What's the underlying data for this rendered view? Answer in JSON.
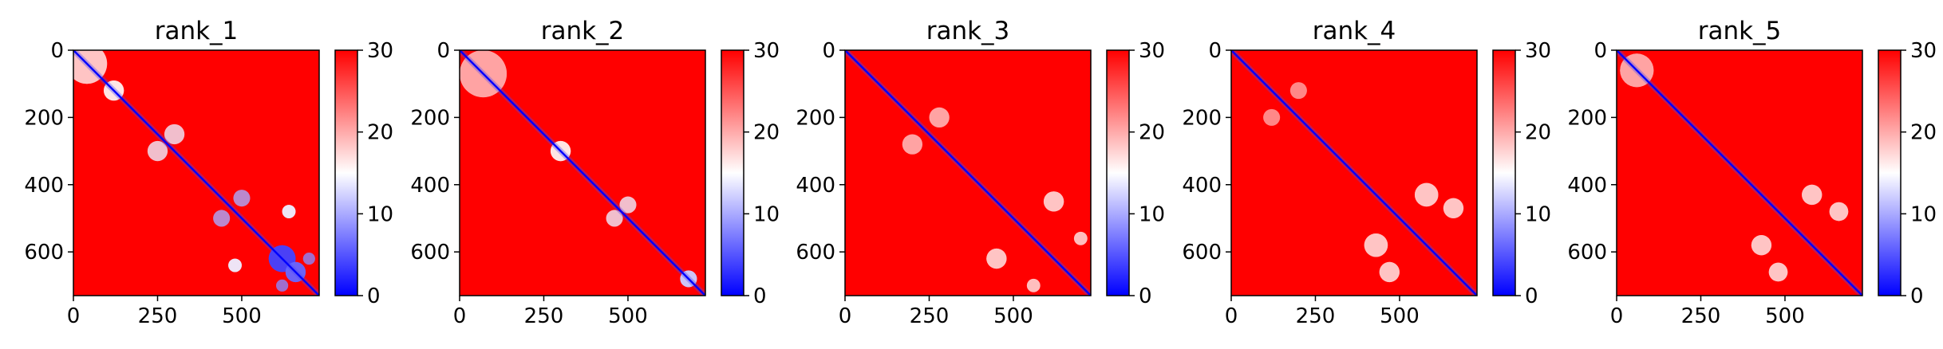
{
  "figure": {
    "colormap": {
      "name": "bwr",
      "low": "#0000ff",
      "mid": "#ffffff",
      "high": "#ff0000"
    }
  },
  "chart_data": [
    {
      "type": "heatmap",
      "title": "rank_1",
      "n": 730,
      "xlim": [
        0,
        730
      ],
      "ylim": [
        730,
        0
      ],
      "xticks": [
        0,
        250,
        500
      ],
      "yticks": [
        0,
        200,
        400,
        600
      ],
      "colorbar": {
        "min": 0,
        "max": 30,
        "ticks": [
          0,
          10,
          20,
          30
        ]
      },
      "low_blobs": [
        {
          "x": 40,
          "y": 40,
          "r": 60,
          "v": 18
        },
        {
          "x": 120,
          "y": 120,
          "r": 30,
          "v": 16
        },
        {
          "x": 250,
          "y": 300,
          "r": 30,
          "v": 14
        },
        {
          "x": 440,
          "y": 500,
          "r": 25,
          "v": 10
        },
        {
          "x": 620,
          "y": 620,
          "r": 40,
          "v": 4
        },
        {
          "x": 660,
          "y": 660,
          "r": 30,
          "v": 6
        },
        {
          "x": 480,
          "y": 640,
          "r": 20,
          "v": 14
        },
        {
          "x": 640,
          "y": 480,
          "r": 20,
          "v": 14
        },
        {
          "x": 700,
          "y": 620,
          "r": 18,
          "v": 8
        }
      ]
    },
    {
      "type": "heatmap",
      "title": "rank_2",
      "n": 730,
      "xlim": [
        0,
        730
      ],
      "ylim": [
        730,
        0
      ],
      "xticks": [
        0,
        250,
        500
      ],
      "yticks": [
        0,
        200,
        400,
        600
      ],
      "colorbar": {
        "min": 0,
        "max": 30,
        "ticks": [
          0,
          10,
          20,
          30
        ]
      },
      "low_blobs": [
        {
          "x": 70,
          "y": 70,
          "r": 70,
          "v": 20
        },
        {
          "x": 300,
          "y": 300,
          "r": 30,
          "v": 16
        },
        {
          "x": 460,
          "y": 500,
          "r": 25,
          "v": 14
        },
        {
          "x": 680,
          "y": 680,
          "r": 25,
          "v": 12
        }
      ]
    },
    {
      "type": "heatmap",
      "title": "rank_3",
      "n": 730,
      "xlim": [
        0,
        730
      ],
      "ylim": [
        730,
        0
      ],
      "xticks": [
        0,
        250,
        500
      ],
      "yticks": [
        0,
        200,
        400,
        600
      ],
      "colorbar": {
        "min": 0,
        "max": 30,
        "ticks": [
          0,
          10,
          20,
          30
        ]
      },
      "low_blobs": [
        {
          "x": 200,
          "y": 280,
          "r": 30,
          "v": 18
        },
        {
          "x": 450,
          "y": 620,
          "r": 30,
          "v": 18
        },
        {
          "x": 620,
          "y": 450,
          "r": 30,
          "v": 18
        },
        {
          "x": 560,
          "y": 700,
          "r": 20,
          "v": 16
        }
      ]
    },
    {
      "type": "heatmap",
      "title": "rank_4",
      "n": 730,
      "xlim": [
        0,
        730
      ],
      "ylim": [
        730,
        0
      ],
      "xticks": [
        0,
        250,
        500
      ],
      "yticks": [
        0,
        200,
        400,
        600
      ],
      "colorbar": {
        "min": 0,
        "max": 30,
        "ticks": [
          0,
          10,
          20,
          30
        ]
      },
      "low_blobs": [
        {
          "x": 430,
          "y": 580,
          "r": 35,
          "v": 18
        },
        {
          "x": 580,
          "y": 430,
          "r": 35,
          "v": 18
        },
        {
          "x": 470,
          "y": 660,
          "r": 30,
          "v": 18
        },
        {
          "x": 660,
          "y": 470,
          "r": 30,
          "v": 18
        },
        {
          "x": 200,
          "y": 120,
          "r": 25,
          "v": 20
        }
      ]
    },
    {
      "type": "heatmap",
      "title": "rank_5",
      "n": 730,
      "xlim": [
        0,
        730
      ],
      "ylim": [
        730,
        0
      ],
      "xticks": [
        0,
        250,
        500
      ],
      "yticks": [
        0,
        200,
        400,
        600
      ],
      "colorbar": {
        "min": 0,
        "max": 30,
        "ticks": [
          0,
          10,
          20,
          30
        ]
      },
      "low_blobs": [
        {
          "x": 60,
          "y": 60,
          "r": 50,
          "v": 20
        },
        {
          "x": 430,
          "y": 580,
          "r": 30,
          "v": 18
        },
        {
          "x": 580,
          "y": 430,
          "r": 30,
          "v": 18
        },
        {
          "x": 480,
          "y": 660,
          "r": 28,
          "v": 18
        },
        {
          "x": 660,
          "y": 480,
          "r": 28,
          "v": 18
        }
      ]
    }
  ]
}
